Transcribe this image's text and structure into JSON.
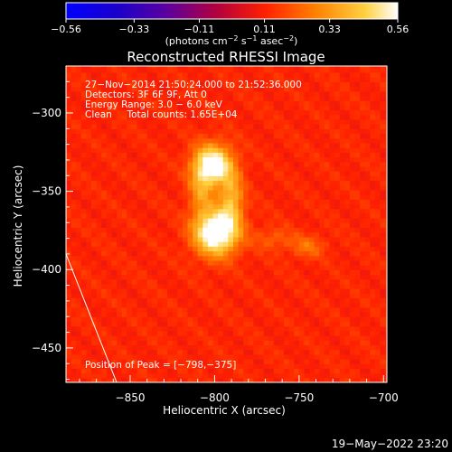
{
  "chart_data": {
    "type": "heatmap",
    "title": "Reconstructed RHESSI Image",
    "xlabel": "Heliocentric X (arcsec)",
    "ylabel": "Heliocentric Y (arcsec)",
    "xlim": [
      -888,
      -698
    ],
    "ylim": [
      -472,
      -270
    ],
    "x_ticks": [
      -850,
      -800,
      -750,
      -700
    ],
    "y_ticks": [
      -300,
      -350,
      -400,
      -450
    ],
    "x_tick_labels": [
      "−850",
      "−800",
      "−750",
      "−700"
    ],
    "y_tick_labels": [
      "−300",
      "−350",
      "−400",
      "−450"
    ],
    "colorbar": {
      "min": -0.56,
      "max": 0.56,
      "ticks": [
        -0.56,
        -0.33,
        -0.11,
        0.11,
        0.33,
        0.56
      ],
      "tick_labels": [
        "−0.56",
        "−0.33",
        "−0.11",
        "0.11",
        "0.33",
        "0.56"
      ],
      "unit_prefix": "(photons cm",
      "unit_exp1": "−2",
      "unit_mid": " s",
      "unit_exp2": "−1",
      "unit_mid2": " asec",
      "unit_exp3": "−2",
      "unit_suffix": ")"
    },
    "annotations": [
      "27−Nov−2014 21:50:24.000 to 21:52:36.000",
      "Detectors: 3F 6F 9F, Att 0",
      "Energy Range: 3.0 − 6.0 keV",
      "Clean     Total counts: 1.65E+04"
    ],
    "peak_label": "Position of Peak = [−798,−375]",
    "sources": [
      {
        "x": -801,
        "y": -333,
        "sx": 8,
        "sy": 9,
        "peak": 0.5
      },
      {
        "x": -799,
        "y": -376,
        "sx": 9,
        "sy": 10,
        "peak": 0.56
      },
      {
        "x": -790,
        "y": -355,
        "sx": 5,
        "sy": 12,
        "peak": 0.26
      },
      {
        "x": -808,
        "y": -350,
        "sx": 5,
        "sy": 12,
        "peak": 0.18
      },
      {
        "x": -745,
        "y": -385,
        "sx": 7,
        "sy": 5,
        "peak": 0.13
      },
      {
        "x": -765,
        "y": -380,
        "sx": 8,
        "sy": 5,
        "peak": 0.1
      }
    ],
    "background_level": 0.12,
    "limb_line": {
      "x1": -888,
      "y1": -390,
      "x2": -858,
      "y2": -472
    },
    "date_stamp": "19−May−2022 23:20"
  }
}
